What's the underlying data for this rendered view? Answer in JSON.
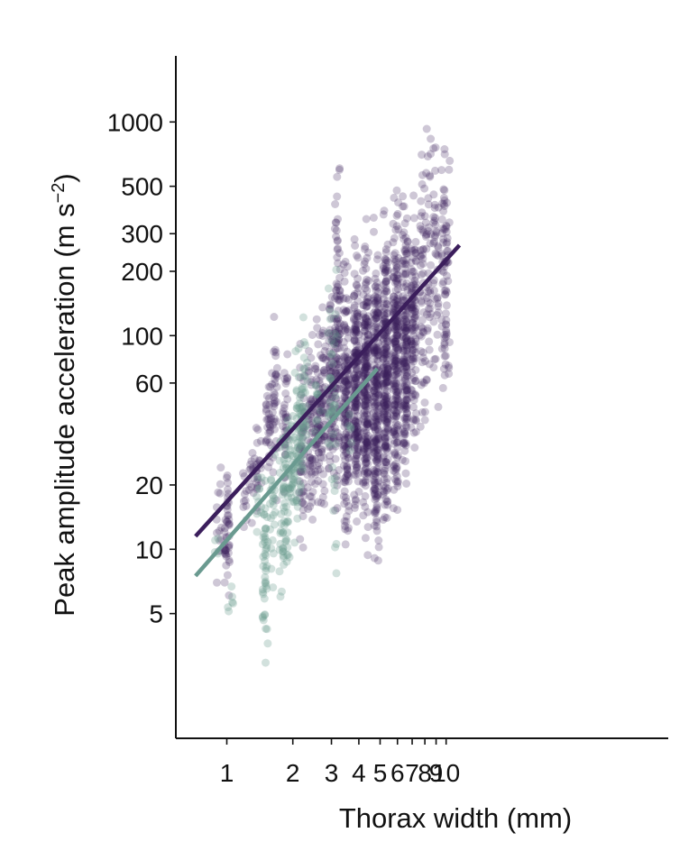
{
  "chart_data": {
    "type": "scatter",
    "xlabel": "Thorax width (mm)",
    "ylabel_main": "Peak amplitude acceleration (m s",
    "ylabel_exp": "−2",
    "ylabel_close": ")",
    "x_scale": "log",
    "y_scale": "log",
    "xlim": [
      0.72,
      11.5
    ],
    "ylim": [
      1.9,
      2000
    ],
    "x_ticks": [
      1,
      2,
      3,
      4,
      5,
      6,
      7,
      8,
      9,
      10
    ],
    "x_tick_labels": [
      "1",
      "2",
      "3",
      "4",
      "5",
      "6",
      "7",
      "8",
      "9",
      "10"
    ],
    "y_ticks": [
      5,
      10,
      20,
      60,
      100,
      200,
      300,
      500,
      1000
    ],
    "y_tick_labels": [
      "5",
      "10",
      "20",
      "60",
      "100",
      "200",
      "300",
      "500",
      "1000"
    ],
    "grid": false,
    "legend": "none",
    "series": [
      {
        "color": "#3b1e5c",
        "point_alpha": 0.25,
        "fit_line": {
          "x": [
            0.72,
            11.5
          ],
          "y": [
            11.5,
            265
          ]
        },
        "columns": [
          {
            "x": 0.92,
            "ymin": 4.3,
            "ymax": 38,
            "n": 14
          },
          {
            "x": 1.0,
            "ymin": 5.5,
            "ymax": 28,
            "n": 45
          },
          {
            "x": 1.2,
            "ymin": 9,
            "ymax": 33,
            "n": 10
          },
          {
            "x": 1.3,
            "ymin": 11,
            "ymax": 50,
            "n": 14
          },
          {
            "x": 1.4,
            "ymin": 14,
            "ymax": 45,
            "n": 22
          },
          {
            "x": 1.55,
            "ymin": 16,
            "ymax": 85,
            "n": 30
          },
          {
            "x": 1.65,
            "ymin": 14,
            "ymax": 140,
            "n": 35
          },
          {
            "x": 1.85,
            "ymin": 12,
            "ymax": 110,
            "n": 35
          },
          {
            "x": 2.2,
            "ymin": 8,
            "ymax": 120,
            "n": 50
          },
          {
            "x": 2.4,
            "ymin": 10,
            "ymax": 140,
            "n": 55
          },
          {
            "x": 2.6,
            "ymin": 10,
            "ymax": 150,
            "n": 60
          },
          {
            "x": 2.75,
            "ymin": 12,
            "ymax": 180,
            "n": 55
          },
          {
            "x": 3.0,
            "ymin": 15,
            "ymax": 230,
            "n": 80
          },
          {
            "x": 3.2,
            "ymin": 9,
            "ymax": 950,
            "n": 110
          },
          {
            "x": 3.5,
            "ymin": 8,
            "ymax": 330,
            "n": 160
          },
          {
            "x": 3.9,
            "ymin": 9,
            "ymax": 380,
            "n": 200
          },
          {
            "x": 4.3,
            "ymin": 8,
            "ymax": 420,
            "n": 230
          },
          {
            "x": 4.8,
            "ymin": 6,
            "ymax": 450,
            "n": 240
          },
          {
            "x": 5.3,
            "ymin": 8,
            "ymax": 600,
            "n": 230
          },
          {
            "x": 5.9,
            "ymin": 9,
            "ymax": 700,
            "n": 220
          },
          {
            "x": 6.5,
            "ymin": 12,
            "ymax": 800,
            "n": 170
          },
          {
            "x": 7.1,
            "ymin": 18,
            "ymax": 750,
            "n": 110
          },
          {
            "x": 7.8,
            "ymin": 25,
            "ymax": 850,
            "n": 50
          },
          {
            "x": 8.3,
            "ymin": 30,
            "ymax": 1500,
            "n": 40
          },
          {
            "x": 9.0,
            "ymin": 30,
            "ymax": 1200,
            "n": 40
          },
          {
            "x": 9.8,
            "ymin": 25,
            "ymax": 1200,
            "n": 45
          },
          {
            "x": 10.1,
            "ymin": 30,
            "ymax": 1100,
            "n": 35
          }
        ]
      },
      {
        "color": "#6a9a90",
        "point_alpha": 0.3,
        "fit_line": {
          "x": [
            0.72,
            4.85
          ],
          "y": [
            7.5,
            70
          ]
        },
        "columns": [
          {
            "x": 0.9,
            "ymin": 8,
            "ymax": 13,
            "n": 4
          },
          {
            "x": 1.04,
            "ymin": 3.5,
            "ymax": 10,
            "n": 6
          },
          {
            "x": 1.4,
            "ymin": 7,
            "ymax": 35,
            "n": 10
          },
          {
            "x": 1.5,
            "ymin": 2.1,
            "ymax": 30,
            "n": 45
          },
          {
            "x": 1.62,
            "ymin": 6,
            "ymax": 40,
            "n": 25
          },
          {
            "x": 1.78,
            "ymin": 4,
            "ymax": 55,
            "n": 30
          },
          {
            "x": 1.85,
            "ymin": 5,
            "ymax": 60,
            "n": 30
          },
          {
            "x": 1.95,
            "ymin": 6,
            "ymax": 90,
            "n": 30
          },
          {
            "x": 2.05,
            "ymin": 9,
            "ymax": 100,
            "n": 40
          },
          {
            "x": 2.15,
            "ymin": 12,
            "ymax": 100,
            "n": 40
          },
          {
            "x": 2.28,
            "ymin": 20,
            "ymax": 160,
            "n": 25
          },
          {
            "x": 2.6,
            "ymin": 30,
            "ymax": 80,
            "n": 10
          },
          {
            "x": 2.95,
            "ymin": 20,
            "ymax": 250,
            "n": 20
          },
          {
            "x": 3.1,
            "ymin": 3.5,
            "ymax": 350,
            "n": 25
          },
          {
            "x": 3.6,
            "ymin": 25,
            "ymax": 60,
            "n": 6
          }
        ]
      }
    ]
  }
}
